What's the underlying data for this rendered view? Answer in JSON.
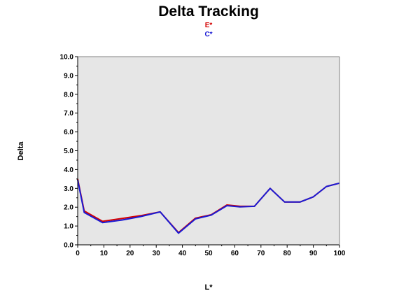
{
  "chart_data": {
    "type": "line",
    "title": "Delta Tracking",
    "xlabel": "L*",
    "ylabel": "Delta",
    "xlim": [
      0,
      100
    ],
    "ylim": [
      0,
      10
    ],
    "x_ticks": [
      0,
      10,
      20,
      30,
      40,
      50,
      60,
      70,
      80,
      90,
      100
    ],
    "y_ticks": [
      "0.0",
      "1.0",
      "2.0",
      "3.0",
      "4.0",
      "5.0",
      "6.0",
      "7.0",
      "8.0",
      "9.0",
      "10.0"
    ],
    "legend_position": "top-center",
    "grid": false,
    "plot_background": "#e6e6e6",
    "series": [
      {
        "name": "E*",
        "color": "#d40000",
        "x": [
          0,
          2.5,
          9.5,
          17,
          24,
          31.5,
          38.5,
          45,
          51,
          57,
          62,
          67.5,
          73.5,
          79,
          85,
          90,
          95,
          100
        ],
        "y": [
          3.5,
          1.8,
          1.25,
          1.4,
          1.55,
          1.75,
          0.65,
          1.42,
          1.6,
          2.12,
          2.05,
          2.05,
          3.0,
          2.28,
          2.28,
          2.55,
          3.1,
          3.28
        ]
      },
      {
        "name": "C*",
        "color": "#1a1ad4",
        "x": [
          0,
          2.5,
          9.5,
          17,
          24,
          31.5,
          38.5,
          45,
          51,
          57,
          62,
          67.5,
          73.5,
          79,
          85,
          90,
          95,
          100
        ],
        "y": [
          3.45,
          1.72,
          1.18,
          1.32,
          1.5,
          1.75,
          0.62,
          1.38,
          1.58,
          2.08,
          2.02,
          2.05,
          3.0,
          2.28,
          2.28,
          2.55,
          3.1,
          3.28
        ]
      }
    ]
  }
}
